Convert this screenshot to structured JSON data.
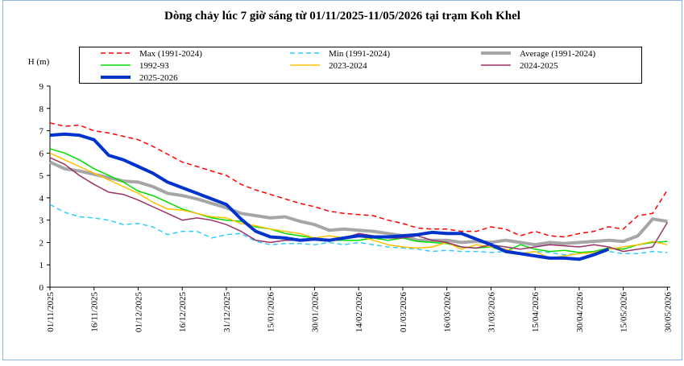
{
  "chart_data": {
    "type": "line",
    "title": "Dòng chảy lúc 7 giờ sáng từ 01/11/2025-11/05/2026 tại trạm Koh Khel",
    "y_label": "H (m)",
    "x": [
      "01/11/2025",
      "06/11/2025",
      "11/11/2025",
      "16/11/2025",
      "21/11/2025",
      "26/11/2025",
      "01/12/2025",
      "06/12/2025",
      "11/12/2025",
      "16/12/2025",
      "21/12/2025",
      "26/12/2025",
      "31/12/2025",
      "05/01/2026",
      "10/01/2026",
      "15/01/2026",
      "20/01/2026",
      "25/01/2026",
      "30/01/2026",
      "04/02/2026",
      "09/02/2026",
      "14/02/2026",
      "19/02/2026",
      "24/02/2026",
      "01/03/2026",
      "06/03/2026",
      "11/03/2026",
      "16/03/2026",
      "21/03/2026",
      "26/03/2026",
      "31/03/2026",
      "05/04/2026",
      "10/04/2026",
      "15/04/2026",
      "20/04/2026",
      "25/04/2026",
      "30/04/2026",
      "05/05/2026",
      "10/05/2026",
      "15/05/2026",
      "20/05/2026",
      "25/05/2026",
      "30/05/2026"
    ],
    "xlim": [
      "01/11/2025",
      "31/05/2026"
    ],
    "xticks": [
      "01/11/2025",
      "16/11/2025",
      "01/12/2025",
      "16/12/2025",
      "31/12/2025",
      "15/01/2026",
      "30/01/2026",
      "14/02/2026",
      "01/03/2026",
      "16/03/2026",
      "31/03/2026",
      "15/04/2026",
      "30/04/2026",
      "15/05/2026",
      "30/05/2026"
    ],
    "ylim": [
      0,
      9
    ],
    "yticks": [
      0,
      1,
      2,
      3,
      4,
      5,
      6,
      7,
      8,
      9
    ],
    "grid": false,
    "series": [
      {
        "name": "Max (1991-2024)",
        "color": "#ff0000",
        "line_style": "dashed",
        "line_weight": "thin",
        "values": [
          7.35,
          7.2,
          7.25,
          7.0,
          6.9,
          6.75,
          6.6,
          6.3,
          5.95,
          5.6,
          5.4,
          5.2,
          5.0,
          4.6,
          4.35,
          4.15,
          3.95,
          3.75,
          3.6,
          3.4,
          3.3,
          3.25,
          3.2,
          3.0,
          2.85,
          2.65,
          2.6,
          2.6,
          2.5,
          2.5,
          2.7,
          2.6,
          2.3,
          2.5,
          2.3,
          2.25,
          2.4,
          2.5,
          2.7,
          2.6,
          3.2,
          3.3,
          4.35
        ]
      },
      {
        "name": "Min (1991-2024)",
        "color": "#33ccff",
        "line_style": "dashed",
        "line_weight": "thin",
        "values": [
          3.7,
          3.35,
          3.15,
          3.1,
          3.0,
          2.8,
          2.85,
          2.7,
          2.35,
          2.5,
          2.5,
          2.2,
          2.35,
          2.4,
          2.05,
          1.9,
          1.95,
          1.95,
          1.9,
          2.0,
          1.9,
          2.0,
          1.9,
          1.8,
          1.75,
          1.7,
          1.6,
          1.65,
          1.6,
          1.6,
          1.55,
          1.6,
          1.5,
          1.6,
          1.55,
          1.45,
          1.5,
          1.55,
          1.6,
          1.5,
          1.5,
          1.6,
          1.55
        ]
      },
      {
        "name": "Average (1991-2024)",
        "color": "#a6a6a6",
        "line_style": "solid",
        "line_weight": "thick",
        "values": [
          5.6,
          5.3,
          5.2,
          5.05,
          4.9,
          4.75,
          4.7,
          4.5,
          4.2,
          4.1,
          3.95,
          3.75,
          3.55,
          3.3,
          3.2,
          3.1,
          3.15,
          2.95,
          2.8,
          2.55,
          2.6,
          2.55,
          2.5,
          2.4,
          2.3,
          2.1,
          2.1,
          2.1,
          2.0,
          2.05,
          2.0,
          2.1,
          2.0,
          1.9,
          2.0,
          1.95,
          2.0,
          2.05,
          2.1,
          2.05,
          2.3,
          3.05,
          2.95
        ]
      },
      {
        "name": "1992-93",
        "color": "#00dd00",
        "line_style": "solid",
        "line_weight": "thin",
        "values": [
          6.2,
          6.0,
          5.7,
          5.3,
          5.0,
          4.7,
          4.3,
          4.1,
          3.8,
          3.5,
          3.3,
          3.1,
          3.0,
          2.95,
          2.7,
          2.6,
          2.4,
          2.3,
          2.2,
          2.1,
          2.1,
          2.1,
          2.2,
          2.1,
          2.2,
          2.05,
          2.0,
          1.95,
          1.8,
          1.75,
          1.8,
          1.6,
          1.9,
          1.7,
          1.6,
          1.65,
          1.55,
          1.6,
          1.75,
          1.7,
          1.9,
          2.0,
          2.05
        ]
      },
      {
        "name": "2023-2024",
        "color": "#ffc000",
        "line_style": "solid",
        "line_weight": "thin",
        "values": [
          6.0,
          5.7,
          5.4,
          5.1,
          4.8,
          4.5,
          4.2,
          3.8,
          3.5,
          3.45,
          3.3,
          3.15,
          3.1,
          2.85,
          2.75,
          2.6,
          2.5,
          2.4,
          2.2,
          2.3,
          2.2,
          2.3,
          2.1,
          1.9,
          1.8,
          1.75,
          1.8,
          2.0,
          1.7,
          1.9,
          1.8,
          1.7,
          1.5,
          1.6,
          1.3,
          1.4,
          1.5,
          1.55,
          1.7,
          1.8,
          1.9,
          2.05,
          1.9
        ]
      },
      {
        "name": "2024-2025",
        "color": "#993366",
        "line_style": "solid",
        "line_weight": "thin",
        "values": [
          5.8,
          5.5,
          5.0,
          4.6,
          4.25,
          4.15,
          3.9,
          3.6,
          3.3,
          3.0,
          3.1,
          3.0,
          2.8,
          2.5,
          2.1,
          2.0,
          2.1,
          2.1,
          2.2,
          2.1,
          2.2,
          2.4,
          2.3,
          2.2,
          2.2,
          2.3,
          2.1,
          2.0,
          1.8,
          1.75,
          1.9,
          1.8,
          1.7,
          1.8,
          1.9,
          1.85,
          1.8,
          1.9,
          1.8,
          1.6,
          1.7,
          1.8,
          2.9
        ]
      },
      {
        "name": "2025-2026",
        "color": "#0033cc",
        "line_style": "solid",
        "line_weight": "thick",
        "values": [
          6.8,
          6.85,
          6.8,
          6.6,
          5.9,
          5.7,
          5.4,
          5.1,
          4.7,
          4.45,
          4.2,
          3.95,
          3.7,
          3.05,
          2.5,
          2.25,
          2.2,
          2.1,
          2.15,
          2.1,
          2.2,
          2.3,
          2.25,
          2.25,
          2.3,
          2.35,
          2.45,
          2.4,
          2.4,
          2.15,
          1.9,
          1.6,
          1.5,
          1.4,
          1.3,
          1.3,
          1.25,
          1.45,
          1.7,
          null,
          null,
          null,
          null
        ]
      }
    ]
  }
}
